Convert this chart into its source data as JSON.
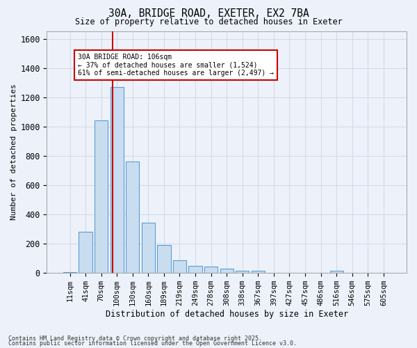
{
  "title_line1": "30A, BRIDGE ROAD, EXETER, EX2 7BA",
  "title_line2": "Size of property relative to detached houses in Exeter",
  "xlabel": "Distribution of detached houses by size in Exeter",
  "ylabel": "Number of detached properties",
  "categories": [
    "11sqm",
    "41sqm",
    "70sqm",
    "100sqm",
    "130sqm",
    "160sqm",
    "189sqm",
    "219sqm",
    "249sqm",
    "278sqm",
    "308sqm",
    "338sqm",
    "367sqm",
    "397sqm",
    "427sqm",
    "457sqm",
    "486sqm",
    "516sqm",
    "546sqm",
    "575sqm",
    "605sqm"
  ],
  "values": [
    5,
    280,
    1040,
    1270,
    760,
    340,
    190,
    85,
    45,
    40,
    25,
    15,
    15,
    0,
    0,
    0,
    0,
    15,
    0,
    0,
    0
  ],
  "bar_color": "#c9ddf0",
  "bar_edge_color": "#5b9bd5",
  "grid_color": "#d0d8e8",
  "bg_color": "#edf2fa",
  "fig_bg_color": "#edf2fa",
  "red_line_x": 2.72,
  "annotation_text": "30A BRIDGE ROAD: 106sqm\n← 37% of detached houses are smaller (1,524)\n61% of semi-detached houses are larger (2,497) →",
  "annotation_box_color": "#cc0000",
  "ylim": [
    0,
    1650
  ],
  "yticks": [
    0,
    200,
    400,
    600,
    800,
    1000,
    1200,
    1400,
    1600
  ],
  "footnote1": "Contains HM Land Registry data © Crown copyright and database right 2025.",
  "footnote2": "Contains public sector information licensed under the Open Government Licence v3.0."
}
